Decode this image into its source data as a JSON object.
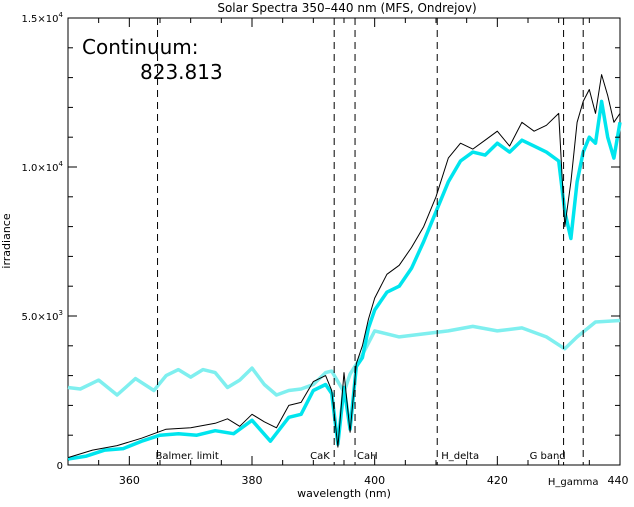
{
  "chart_data": {
    "type": "line",
    "title": "Solar Spectra 350–440 nm (MFS, Ondrejov)",
    "xlabel": "wavelength (nm)",
    "ylabel": "irradiance",
    "xlim": [
      350,
      440
    ],
    "ylim": [
      0,
      15000
    ],
    "x_ticks": [
      360,
      380,
      400,
      420,
      440
    ],
    "y_ticks": [
      {
        "value": 0,
        "mantissa": "0",
        "exponent": ""
      },
      {
        "value": 5000,
        "mantissa": "5.0×10",
        "exponent": "3"
      },
      {
        "value": 10000,
        "mantissa": "1.0×10",
        "exponent": "4"
      },
      {
        "value": 15000,
        "mantissa": "1.5×10",
        "exponent": "4"
      }
    ],
    "annotation": {
      "label": "Continuum:",
      "value": "823.813"
    },
    "colors": {
      "raw": "#000000",
      "smoothed": "#00e5ee",
      "continuum": "#7fefef"
    },
    "series": [
      {
        "key": "continuum",
        "x": [
          350,
          352,
          355,
          358,
          361,
          364,
          366,
          368,
          370,
          372,
          374,
          376,
          378,
          380,
          382,
          384,
          386,
          388,
          390,
          392,
          393,
          395,
          396,
          398,
          400,
          404,
          408,
          412,
          416,
          420,
          424,
          428,
          431,
          433,
          436,
          440
        ],
        "y": [
          2600,
          2550,
          2850,
          2350,
          2900,
          2500,
          3000,
          3200,
          2950,
          3200,
          3100,
          2600,
          2850,
          3250,
          2700,
          2350,
          2500,
          2550,
          2700,
          3100,
          3150,
          2450,
          3050,
          3700,
          4500,
          4300,
          4400,
          4500,
          4650,
          4500,
          4600,
          4300,
          3900,
          4300,
          4800,
          4850
        ]
      },
      {
        "key": "smoothed",
        "x": [
          350,
          353,
          356,
          359,
          362,
          365,
          368,
          371,
          374,
          377,
          380,
          383,
          386,
          388,
          390,
          392,
          393,
          394,
          395,
          396,
          397,
          398,
          399,
          400,
          402,
          404,
          406,
          408,
          410,
          412,
          414,
          416,
          418,
          420,
          422,
          424,
          426,
          428,
          430,
          431,
          432,
          433,
          434,
          435,
          436,
          437,
          438,
          439,
          440
        ],
        "y": [
          200,
          300,
          500,
          550,
          800,
          1000,
          1050,
          1000,
          1150,
          1050,
          1500,
          800,
          1600,
          1700,
          2500,
          2700,
          2400,
          700,
          2600,
          1200,
          3300,
          3600,
          4600,
          5200,
          5800,
          6000,
          6600,
          7500,
          8500,
          9500,
          10200,
          10500,
          10400,
          10800,
          10500,
          10900,
          10700,
          10500,
          10200,
          8500,
          7600,
          9500,
          10500,
          11000,
          10800,
          12200,
          11000,
          10300,
          11500
        ]
      },
      {
        "key": "raw",
        "x": [
          350,
          354,
          358,
          362,
          366,
          370,
          374,
          376,
          378,
          380,
          382,
          384,
          386,
          388,
          390,
          392,
          393,
          394,
          395,
          396,
          397,
          398,
          399,
          400,
          402,
          404,
          406,
          408,
          410,
          412,
          414,
          416,
          418,
          420,
          422,
          424,
          426,
          428,
          430,
          431,
          432,
          433,
          434,
          435,
          436,
          437,
          438,
          439,
          440
        ],
        "y": [
          250,
          500,
          650,
          900,
          1200,
          1250,
          1400,
          1550,
          1300,
          1700,
          1450,
          1250,
          2000,
          2100,
          2800,
          3000,
          2500,
          600,
          3100,
          1100,
          3400,
          4000,
          4900,
          5600,
          6400,
          6700,
          7300,
          8000,
          9000,
          10300,
          10800,
          10600,
          10900,
          11200,
          10700,
          11500,
          11200,
          11400,
          11800,
          8000,
          9500,
          11500,
          12200,
          12600,
          11800,
          13100,
          12400,
          11500,
          11800
        ]
      }
    ],
    "markers": [
      {
        "x": 364.6,
        "label": "Balmer. limit"
      },
      {
        "x": 393.4,
        "label": "CaK"
      },
      {
        "x": 396.8,
        "label": "CaH"
      },
      {
        "x": 410.2,
        "label": "H_delta"
      },
      {
        "x": 430.8,
        "label": "G band"
      },
      {
        "x": 434.0,
        "label": "H_gamma"
      }
    ]
  }
}
